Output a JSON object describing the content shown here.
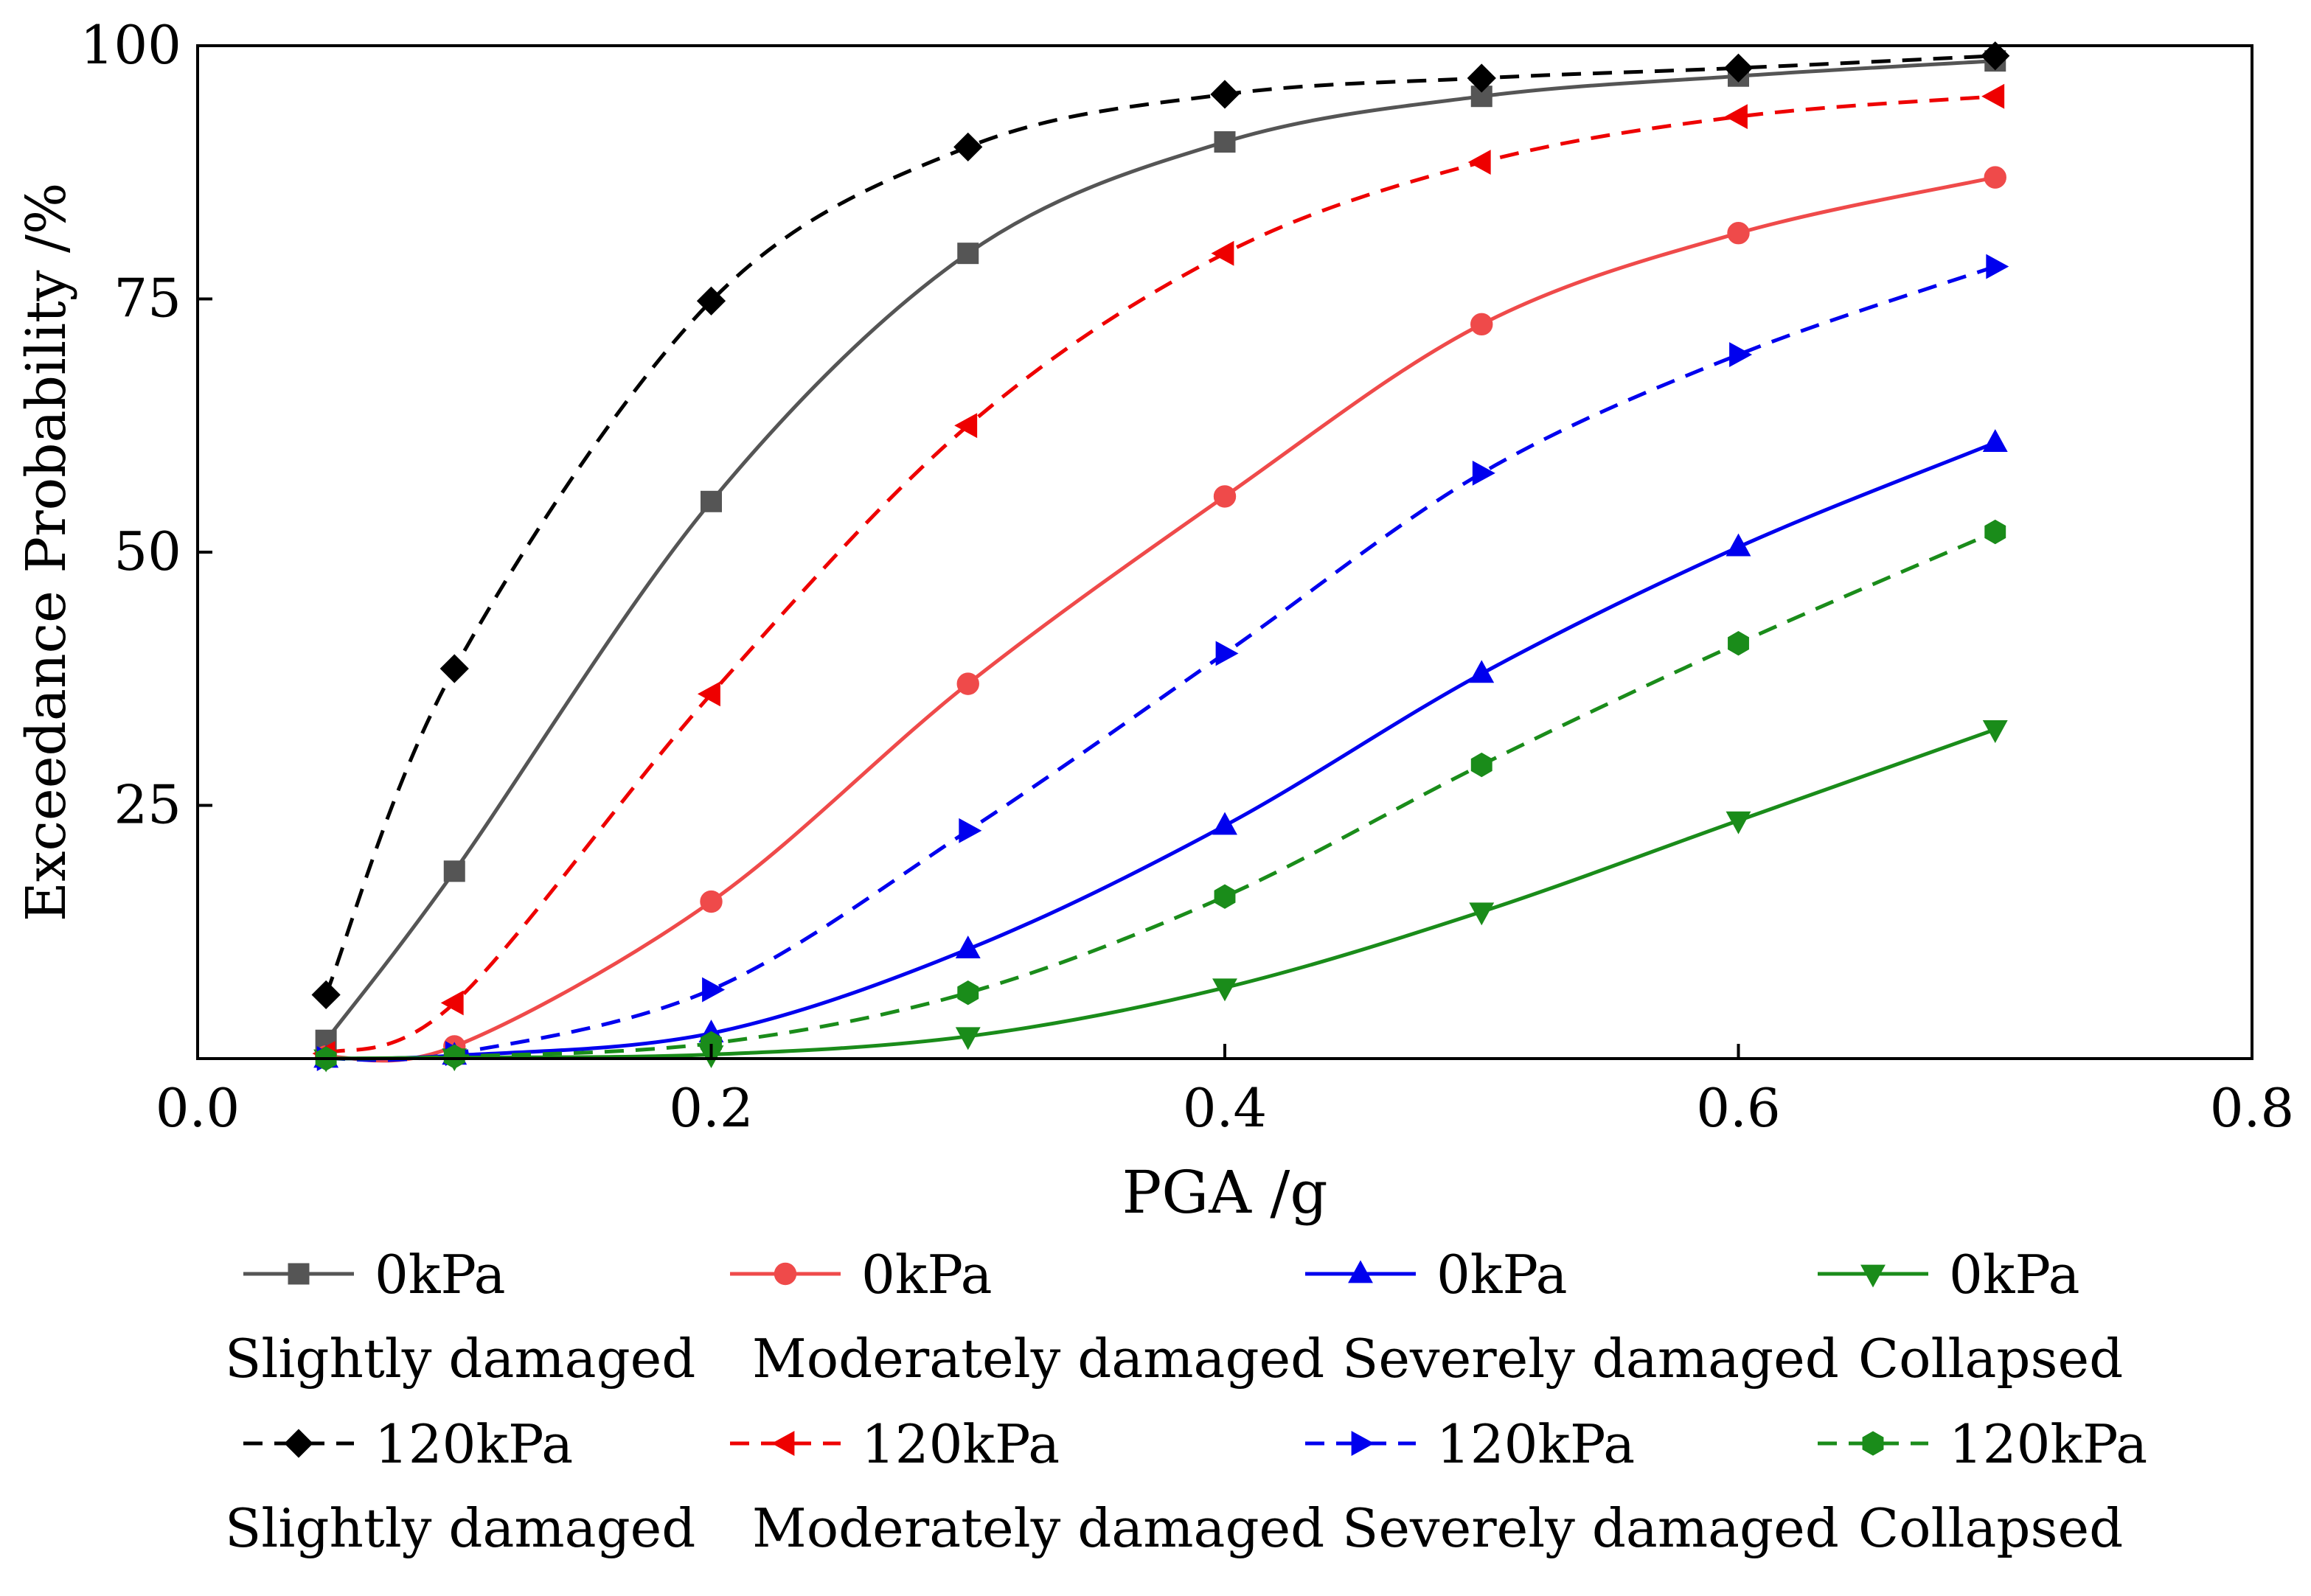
{
  "chart_data": {
    "type": "line",
    "title": "",
    "xlabel": "PGA /g",
    "ylabel": "Exceedance Probability /%",
    "xlim": [
      0.0,
      0.8
    ],
    "ylim": [
      0,
      100
    ],
    "x_ticks": [
      0.0,
      0.2,
      0.4,
      0.6,
      0.8
    ],
    "x_tick_labels": [
      "0.0",
      "0.2",
      "0.4",
      "0.6",
      "0.8"
    ],
    "y_ticks": [
      25,
      50,
      75,
      100
    ],
    "y_tick_labels": [
      "25",
      "50",
      "75",
      "100"
    ],
    "grid": false,
    "legend_position": "bottom",
    "x": [
      0.05,
      0.1,
      0.2,
      0.3,
      0.4,
      0.5,
      0.6,
      0.7
    ],
    "series": [
      {
        "name": "0kPa",
        "state": "Slightly damaged",
        "color": "#555555",
        "dash": "solid",
        "marker": "square",
        "values": [
          1.8,
          18.5,
          55.0,
          79.5,
          90.5,
          95.0,
          97.0,
          98.5
        ]
      },
      {
        "name": "0kPa",
        "state": "Moderately damaged",
        "color": "#ef4a4a",
        "dash": "solid",
        "marker": "circle",
        "values": [
          0.2,
          1.2,
          15.5,
          37.0,
          55.5,
          72.5,
          81.5,
          87.0
        ]
      },
      {
        "name": "0kPa",
        "state": "Severely damaged",
        "color": "#0000ee",
        "dash": "solid",
        "marker": "triangle-up",
        "values": [
          0.0,
          0.3,
          2.5,
          10.8,
          23.0,
          38.0,
          50.5,
          60.8
        ]
      },
      {
        "name": "0kPa",
        "state": "Collapsed",
        "color": "#1a8c1a",
        "dash": "solid",
        "marker": "triangle-down",
        "values": [
          0.0,
          0.1,
          0.4,
          2.2,
          7.0,
          14.5,
          23.5,
          32.5
        ]
      },
      {
        "name": "120kPa",
        "state": "Slightly damaged",
        "color": "#000000",
        "dash": "dashed",
        "marker": "diamond",
        "values": [
          6.3,
          38.5,
          74.8,
          90.0,
          95.2,
          96.8,
          97.8,
          99.0
        ]
      },
      {
        "name": "120kPa",
        "state": "Moderately damaged",
        "color": "#ee0000",
        "dash": "dashed",
        "marker": "triangle-left",
        "values": [
          0.5,
          5.5,
          36.0,
          62.5,
          79.5,
          88.5,
          93.0,
          95.0
        ]
      },
      {
        "name": "120kPa",
        "state": "Severely damaged",
        "color": "#0000ee",
        "dash": "dashed",
        "marker": "triangle-right",
        "values": [
          0.0,
          0.5,
          6.8,
          22.5,
          40.0,
          57.8,
          69.5,
          78.2
        ]
      },
      {
        "name": "120kPa",
        "state": "Collapsed",
        "color": "#1a8c1a",
        "dash": "dashed",
        "marker": "hexagon",
        "values": [
          0.0,
          0.2,
          1.5,
          6.5,
          16.0,
          29.0,
          41.0,
          52.0
        ]
      }
    ]
  }
}
